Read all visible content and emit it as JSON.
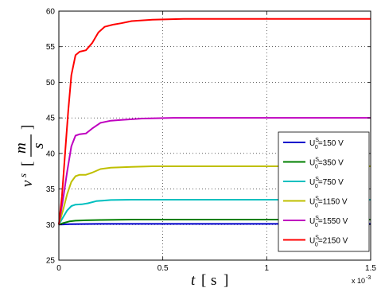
{
  "chart_data": {
    "type": "line",
    "xlabel": {
      "var": "t",
      "unit": "s"
    },
    "ylabel": {
      "var": "v",
      "sup": "s",
      "num": "m",
      "den": "s"
    },
    "x_multiplier": "x 10",
    "x_multiplier_exp": "-3",
    "xlim": [
      0,
      1.5
    ],
    "ylim": [
      25,
      60
    ],
    "xticks": [
      0,
      0.5,
      1,
      1.5
    ],
    "xtick_labels": [
      "0",
      "0.5",
      "1",
      "1.5"
    ],
    "yticks": [
      25,
      30,
      35,
      40,
      45,
      50,
      55,
      60
    ],
    "ytick_labels": [
      "25",
      "30",
      "35",
      "40",
      "45",
      "50",
      "55",
      "60"
    ],
    "grid": true,
    "legend_position": "right",
    "series": [
      {
        "name": "U0S=150 V",
        "legend": {
          "pre": "U",
          "sup": "S",
          "sub": "0",
          "post": "=150 V"
        },
        "color": "#0000cc",
        "points": [
          [
            0,
            30
          ],
          [
            0.02,
            30.02
          ],
          [
            0.05,
            30.05
          ],
          [
            0.1,
            30.08
          ],
          [
            0.2,
            30.1
          ],
          [
            0.4,
            30.1
          ],
          [
            1.5,
            30.1
          ]
        ]
      },
      {
        "name": "U0S=350 V",
        "legend": {
          "pre": "U",
          "sup": "S",
          "sub": "0",
          "post": "=350 V"
        },
        "color": "#008000",
        "points": [
          [
            0,
            30
          ],
          [
            0.02,
            30.2
          ],
          [
            0.05,
            30.45
          ],
          [
            0.08,
            30.55
          ],
          [
            0.13,
            30.6
          ],
          [
            0.2,
            30.65
          ],
          [
            0.35,
            30.7
          ],
          [
            1.5,
            30.7
          ]
        ]
      },
      {
        "name": "U0S=750 V",
        "legend": {
          "pre": "U",
          "sup": "S",
          "sub": "0",
          "post": "=750 V"
        },
        "color": "#00bfbf",
        "points": [
          [
            0,
            30
          ],
          [
            0.02,
            31.0
          ],
          [
            0.04,
            32.0
          ],
          [
            0.06,
            32.6
          ],
          [
            0.08,
            32.8
          ],
          [
            0.11,
            32.85
          ],
          [
            0.14,
            33.0
          ],
          [
            0.18,
            33.3
          ],
          [
            0.25,
            33.45
          ],
          [
            0.35,
            33.5
          ],
          [
            1.5,
            33.5
          ]
        ]
      },
      {
        "name": "U0S=1150 V",
        "legend": {
          "pre": "U",
          "sup": "S",
          "sub": "0",
          "post": "=1150 V"
        },
        "color": "#bfbf00",
        "points": [
          [
            0,
            30
          ],
          [
            0.02,
            32.0
          ],
          [
            0.04,
            34.3
          ],
          [
            0.06,
            36.0
          ],
          [
            0.08,
            36.8
          ],
          [
            0.1,
            37.0
          ],
          [
            0.13,
            37.0
          ],
          [
            0.16,
            37.3
          ],
          [
            0.2,
            37.8
          ],
          [
            0.25,
            38.0
          ],
          [
            0.35,
            38.1
          ],
          [
            0.45,
            38.2
          ],
          [
            1.5,
            38.2
          ]
        ]
      },
      {
        "name": "U0S=1550 V",
        "legend": {
          "pre": "U",
          "sup": "S",
          "sub": "0",
          "post": "=1550 V"
        },
        "color": "#bf00bf",
        "points": [
          [
            0,
            30
          ],
          [
            0.02,
            33.5
          ],
          [
            0.04,
            37.5
          ],
          [
            0.06,
            41.0
          ],
          [
            0.08,
            42.5
          ],
          [
            0.1,
            42.7
          ],
          [
            0.13,
            42.8
          ],
          [
            0.16,
            43.5
          ],
          [
            0.2,
            44.3
          ],
          [
            0.25,
            44.6
          ],
          [
            0.3,
            44.7
          ],
          [
            0.4,
            44.9
          ],
          [
            0.55,
            45.0
          ],
          [
            1.5,
            45.0
          ]
        ]
      },
      {
        "name": "U0S=2150 V",
        "legend": {
          "pre": "U",
          "sup": "S",
          "sub": "0",
          "post": "=2150 V"
        },
        "color": "#ff0000",
        "points": [
          [
            0,
            30
          ],
          [
            0.015,
            34.0
          ],
          [
            0.03,
            40.0
          ],
          [
            0.045,
            46.0
          ],
          [
            0.06,
            51.0
          ],
          [
            0.08,
            53.8
          ],
          [
            0.1,
            54.3
          ],
          [
            0.13,
            54.5
          ],
          [
            0.16,
            55.5
          ],
          [
            0.19,
            57.0
          ],
          [
            0.22,
            57.8
          ],
          [
            0.26,
            58.1
          ],
          [
            0.3,
            58.3
          ],
          [
            0.35,
            58.6
          ],
          [
            0.45,
            58.8
          ],
          [
            0.6,
            58.9
          ],
          [
            1.5,
            58.9
          ]
        ]
      }
    ]
  }
}
